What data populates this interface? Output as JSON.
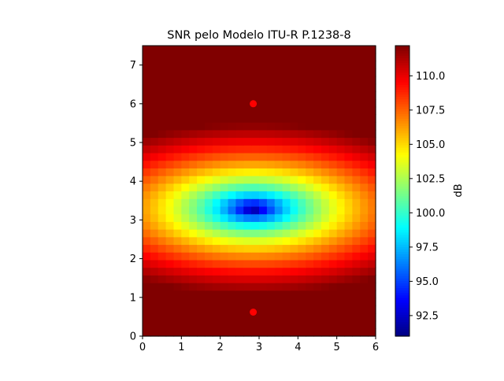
{
  "chart_data": {
    "type": "heatmap",
    "title": "SNR pelo Modelo ITU-R P.1238-8",
    "xlabel": "",
    "ylabel": "",
    "xlim": [
      0,
      6
    ],
    "ylim": [
      0,
      7.5
    ],
    "x_ticks": [
      "0",
      "1",
      "2",
      "3",
      "4",
      "5",
      "6"
    ],
    "y_ticks": [
      "0",
      "1",
      "2",
      "3",
      "4",
      "5",
      "6",
      "7"
    ],
    "grid": false,
    "colormap": "jet",
    "grid_cells": {
      "nx": 30,
      "ny": 38
    },
    "field": {
      "center_x": 2.85,
      "center_y": 3.3,
      "min_db": 91.0,
      "max_db": 112.2,
      "note": "SNR field: minimum at center, increasing radially (elliptical, stronger growth in y)"
    },
    "points": [
      {
        "x": 2.85,
        "y": 6.0,
        "color": "#ff0000"
      },
      {
        "x": 2.85,
        "y": 0.62,
        "color": "#ff0000"
      }
    ],
    "colorbar": {
      "label": "dB",
      "min": 91.0,
      "max": 112.2,
      "ticks": [
        "92.5",
        "95.0",
        "97.5",
        "100.0",
        "102.5",
        "105.0",
        "107.5",
        "110.0"
      ]
    }
  }
}
